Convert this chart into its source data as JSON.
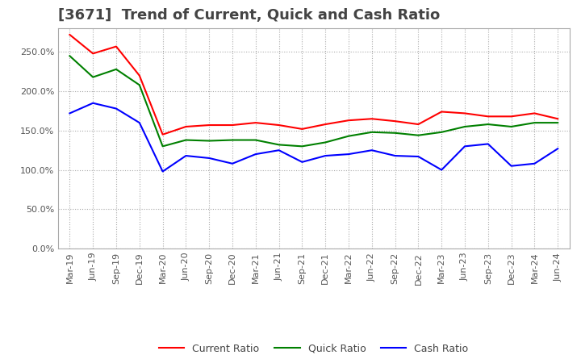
{
  "title": "[3671]  Trend of Current, Quick and Cash Ratio",
  "x_labels": [
    "Mar-19",
    "Jun-19",
    "Sep-19",
    "Dec-19",
    "Mar-20",
    "Jun-20",
    "Sep-20",
    "Dec-20",
    "Mar-21",
    "Jun-21",
    "Sep-21",
    "Dec-21",
    "Mar-22",
    "Jun-22",
    "Sep-22",
    "Dec-22",
    "Mar-23",
    "Jun-23",
    "Sep-23",
    "Dec-23",
    "Mar-24",
    "Jun-24"
  ],
  "current_ratio": [
    2.72,
    2.48,
    2.57,
    2.2,
    1.45,
    1.55,
    1.57,
    1.57,
    1.6,
    1.57,
    1.52,
    1.58,
    1.63,
    1.65,
    1.62,
    1.58,
    1.74,
    1.72,
    1.68,
    1.68,
    1.72,
    1.65
  ],
  "quick_ratio": [
    2.45,
    2.18,
    2.28,
    2.08,
    1.3,
    1.38,
    1.37,
    1.38,
    1.38,
    1.32,
    1.3,
    1.35,
    1.43,
    1.48,
    1.47,
    1.44,
    1.48,
    1.55,
    1.58,
    1.55,
    1.6,
    1.6
  ],
  "cash_ratio": [
    1.72,
    1.85,
    1.78,
    1.6,
    0.98,
    1.18,
    1.15,
    1.08,
    1.2,
    1.25,
    1.1,
    1.18,
    1.2,
    1.25,
    1.18,
    1.17,
    1.0,
    1.3,
    1.33,
    1.05,
    1.08,
    1.27
  ],
  "current_color": "#FF0000",
  "quick_color": "#008000",
  "cash_color": "#0000FF",
  "ylim": [
    0.0,
    2.8
  ],
  "yticks": [
    0.0,
    0.5,
    1.0,
    1.5,
    2.0,
    2.5
  ],
  "background_color": "#FFFFFF",
  "grid_color": "#AAAAAA",
  "title_fontsize": 13,
  "axis_fontsize": 8,
  "legend_fontsize": 9
}
